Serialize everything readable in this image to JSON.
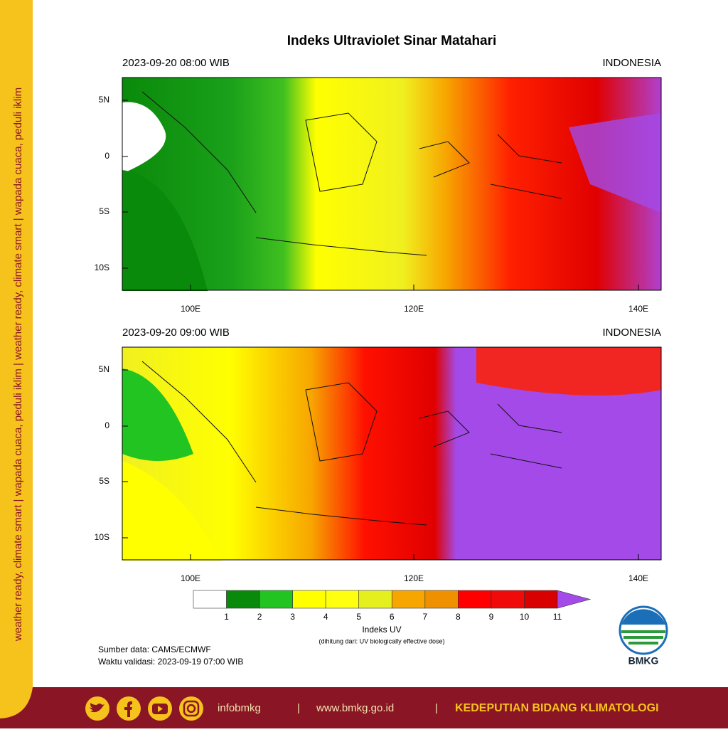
{
  "sidebar": "weather ready, climate smart | wapada cuaca, peduli iklim | weather ready, climate smart | wapada cuaca, peduli iklim",
  "title": "Indeks Ultraviolet Sinar Matahari",
  "maps": [
    {
      "time": "2023-09-20  08:00 WIB",
      "region": "INDONESIA"
    },
    {
      "time": "2023-09-20  09:00 WIB",
      "region": "INDONESIA"
    }
  ],
  "lat_labels": [
    "5N",
    "0",
    "5S",
    "10S"
  ],
  "lon_labels": [
    "100E",
    "120E",
    "140E"
  ],
  "colorbar": {
    "labels": [
      1,
      2,
      3,
      4,
      5,
      6,
      7,
      8,
      9,
      10,
      11
    ],
    "colors": [
      "#ffffff",
      "#0a8a0a",
      "#22c422",
      "#ffff00",
      "#ffff10",
      "#e6ef1e",
      "#f7a600",
      "#ee9000",
      "#ff0000",
      "#f00a0a",
      "#d80000",
      "#a34ae8"
    ],
    "title": "Indeks UV",
    "subtitle": "(dihitung dari: UV biologically effective dose)"
  },
  "source": "Sumber data: CAMS/ECMWF",
  "validation": "Waktu validasi: 2023-09-19 07:00 WIB",
  "logo": "BMKG",
  "footer": [
    "infobmkg",
    "|",
    "www.bmkg.go.id",
    "|",
    "KEDEPUTIAN BIDANG KLIMATOLOGI"
  ]
}
